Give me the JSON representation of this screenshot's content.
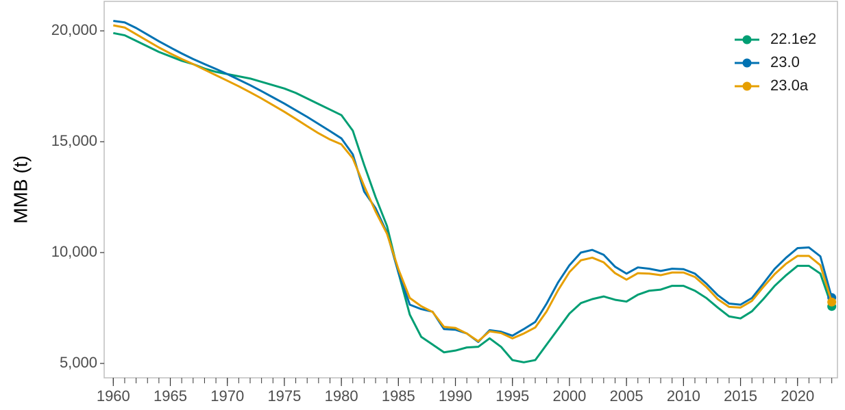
{
  "chart_data": {
    "type": "line",
    "y_label": "MMB (t)",
    "x": [
      1960,
      1961,
      1962,
      1963,
      1964,
      1965,
      1966,
      1967,
      1968,
      1969,
      1970,
      1971,
      1972,
      1973,
      1974,
      1975,
      1976,
      1977,
      1978,
      1979,
      1980,
      1981,
      1982,
      1983,
      1984,
      1985,
      1986,
      1987,
      1988,
      1989,
      1990,
      1991,
      1992,
      1993,
      1994,
      1995,
      1996,
      1997,
      1998,
      1999,
      2000,
      2001,
      2002,
      2003,
      2004,
      2005,
      2006,
      2007,
      2008,
      2009,
      2010,
      2011,
      2012,
      2013,
      2014,
      2015,
      2016,
      2017,
      2018,
      2019,
      2020,
      2021,
      2022,
      2023
    ],
    "series": [
      {
        "name": "22.1e2",
        "color": "#009e73",
        "values": [
          19900,
          19800,
          19550,
          19300,
          19050,
          18850,
          18650,
          18500,
          18300,
          18150,
          18050,
          17950,
          17850,
          17700,
          17550,
          17400,
          17200,
          16950,
          16700,
          16450,
          16200,
          15500,
          13950,
          12500,
          11200,
          9100,
          7200,
          6200,
          5850,
          5500,
          5580,
          5720,
          5750,
          6130,
          5750,
          5150,
          5050,
          5150,
          5850,
          6550,
          7250,
          7720,
          7900,
          8020,
          7870,
          7790,
          8100,
          8280,
          8330,
          8500,
          8500,
          8280,
          7950,
          7520,
          7120,
          7030,
          7350,
          7900,
          8500,
          8980,
          9400,
          9400,
          9050,
          7570
        ]
      },
      {
        "name": "23.0",
        "color": "#0072b2",
        "values": [
          20450,
          20380,
          20130,
          19830,
          19530,
          19250,
          18980,
          18730,
          18500,
          18280,
          18050,
          17800,
          17550,
          17280,
          17000,
          16720,
          16420,
          16120,
          15800,
          15480,
          15150,
          14430,
          12750,
          12000,
          10900,
          9100,
          7650,
          7450,
          7330,
          6550,
          6520,
          6350,
          5970,
          6500,
          6430,
          6250,
          6550,
          6870,
          7700,
          8650,
          9430,
          10000,
          10120,
          9900,
          9360,
          9050,
          9330,
          9270,
          9170,
          9270,
          9250,
          9050,
          8600,
          8080,
          7700,
          7650,
          7950,
          8600,
          9270,
          9770,
          10200,
          10230,
          9830,
          7970
        ]
      },
      {
        "name": "23.0a",
        "color": "#e69f00",
        "values": [
          20250,
          20150,
          19850,
          19550,
          19250,
          18980,
          18730,
          18500,
          18250,
          18000,
          17750,
          17500,
          17230,
          16950,
          16650,
          16350,
          16030,
          15700,
          15380,
          15100,
          14880,
          14250,
          13000,
          11850,
          10850,
          9250,
          7950,
          7580,
          7320,
          6650,
          6600,
          6350,
          6000,
          6450,
          6370,
          6130,
          6350,
          6620,
          7350,
          8300,
          9120,
          9650,
          9770,
          9560,
          9070,
          8780,
          9070,
          9050,
          8980,
          9100,
          9100,
          8900,
          8450,
          7900,
          7550,
          7520,
          7820,
          8450,
          9030,
          9500,
          9850,
          9850,
          9430,
          7770
        ]
      }
    ],
    "xlim": [
      1959.2,
      2023.5
    ],
    "ylim": [
      4350,
      21330
    ],
    "xticks": [
      1960,
      1965,
      1970,
      1975,
      1980,
      1985,
      1990,
      1995,
      2000,
      2005,
      2010,
      2015,
      2020
    ],
    "yticks": [
      {
        "value": 5000,
        "label": "5,000"
      },
      {
        "value": 10000,
        "label": "10,000"
      },
      {
        "value": 15000,
        "label": "15,000"
      },
      {
        "value": 20000,
        "label": "20,000"
      }
    ],
    "legend": "top-right",
    "end_markers": true
  }
}
